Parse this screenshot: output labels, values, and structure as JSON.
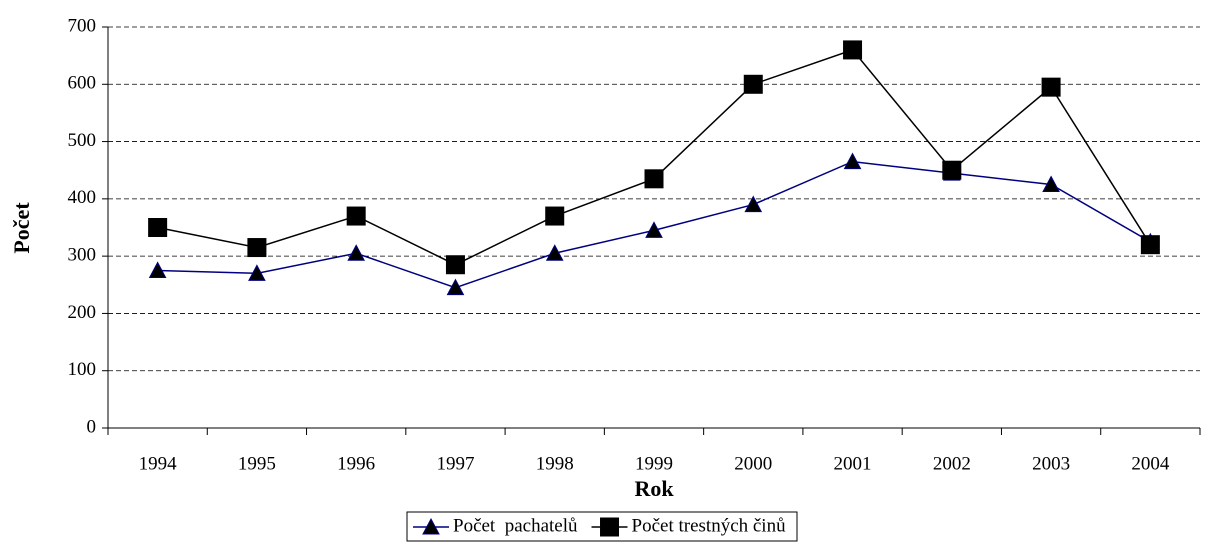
{
  "chart_data": {
    "type": "line",
    "x_label": "Rok",
    "y_label": "Počet",
    "categories": [
      "1994",
      "1995",
      "1996",
      "1997",
      "1998",
      "1999",
      "2000",
      "2001",
      "2002",
      "2003",
      "2004"
    ],
    "series": [
      {
        "name": "Počet  pachatelů",
        "color": "#000080",
        "marker": "triangle",
        "values": [
          275,
          270,
          305,
          245,
          305,
          345,
          390,
          465,
          445,
          425,
          325
        ]
      },
      {
        "name": "Počet trestných činů",
        "color": "#000000",
        "marker": "square",
        "values": [
          350,
          315,
          370,
          285,
          370,
          435,
          600,
          660,
          450,
          595,
          320
        ]
      }
    ],
    "ylim": [
      0,
      700
    ],
    "yticks": [
      0,
      100,
      200,
      300,
      400,
      500,
      600,
      700
    ],
    "grid": true,
    "legend": "bottom"
  }
}
